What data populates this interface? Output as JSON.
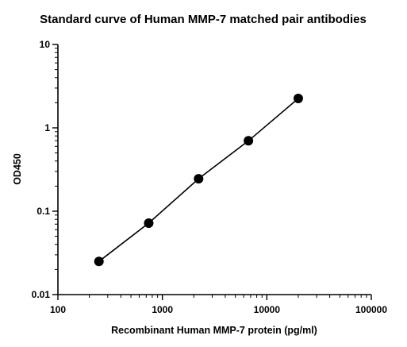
{
  "chart_data": {
    "type": "scatter",
    "title": "Standard curve of Human MMP-7 matched pair antibodies",
    "xlabel": "Recombinant Human MMP-7 protein (pg/ml)",
    "ylabel": "OD450",
    "xscale": "log",
    "yscale": "log",
    "xlim": [
      100,
      100000
    ],
    "ylim": [
      0.01,
      10
    ],
    "x_ticks": [
      100,
      1000,
      10000,
      100000
    ],
    "x_tick_labels": [
      "100",
      "1000",
      "10000",
      "100000"
    ],
    "y_ticks": [
      0.01,
      0.1,
      1,
      10
    ],
    "y_tick_labels": [
      "0.01",
      "0.1",
      "1",
      "10"
    ],
    "grid": false,
    "legend": "none",
    "points": [
      {
        "x": 247,
        "y": 0.025
      },
      {
        "x": 740,
        "y": 0.072
      },
      {
        "x": 2222,
        "y": 0.245
      },
      {
        "x": 6667,
        "y": 0.7
      },
      {
        "x": 20000,
        "y": 2.25
      }
    ],
    "fit_line": true,
    "color": "#000000"
  }
}
